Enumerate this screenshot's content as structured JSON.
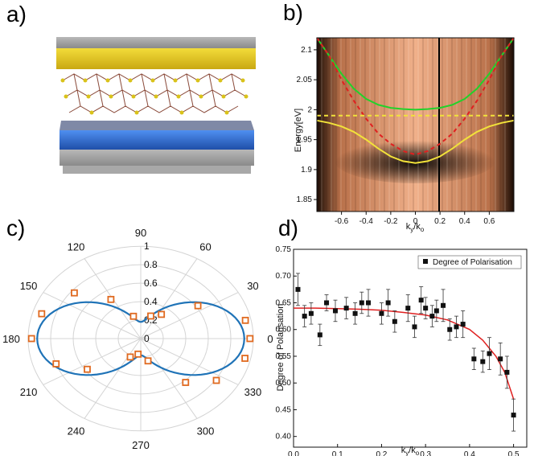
{
  "panels": {
    "a": "a)",
    "b": "b)",
    "c": "c)",
    "d": "d)"
  },
  "colors": {
    "gold": "#e0c419",
    "grey": "#9a9a9a",
    "blue": "#2f6fd0",
    "mos2_yellow": "#d9c21a",
    "mos2_brown": "#8a4a3a",
    "green_curve": "#22d22a",
    "red_dash": "#e02020",
    "yellow_curve": "#f2e23a",
    "polar_curve": "#1f73b7",
    "polar_marker": "#e06a20",
    "fit_red": "#e02020"
  },
  "chart_data": [
    {
      "panel": "b",
      "type": "line",
      "xlabel": "k_y/k_o",
      "ylabel": "Energy[eV]",
      "xlim": [
        -0.8,
        0.8
      ],
      "ylim": [
        1.83,
        2.12
      ],
      "xticks": [
        "-0.6",
        "-0.4",
        "-0.2",
        "0",
        "0.2",
        "0.4",
        "0.6"
      ],
      "xtick_values": [
        -0.6,
        -0.4,
        -0.2,
        0,
        0.2,
        0.4,
        0.6
      ],
      "yticks": [
        "1.85",
        "1.9",
        "1.95",
        "2",
        "2.05",
        "2.1"
      ],
      "ytick_values": [
        1.85,
        1.9,
        1.95,
        2.0,
        2.05,
        2.1
      ],
      "background": "angle-resolved reflectivity colormap (copper)",
      "series": [
        {
          "style": "green-solid",
          "x": [
            -0.8,
            -0.7,
            -0.6,
            -0.5,
            -0.4,
            -0.3,
            -0.2,
            -0.1,
            0,
            0.1,
            0.2,
            0.3,
            0.4,
            0.5,
            0.6,
            0.7,
            0.8
          ],
          "y": [
            2.13,
            2.09,
            2.06,
            2.035,
            2.018,
            2.008,
            2.003,
            2.001,
            2.0,
            2.001,
            2.003,
            2.008,
            2.018,
            2.035,
            2.06,
            2.09,
            2.13
          ]
        },
        {
          "style": "red-dashed",
          "x": [
            -0.8,
            -0.7,
            -0.6,
            -0.5,
            -0.4,
            -0.3,
            -0.2,
            -0.1,
            0,
            0.1,
            0.2,
            0.3,
            0.4,
            0.5,
            0.6,
            0.7,
            0.8
          ],
          "y": [
            2.14,
            2.09,
            2.05,
            2.015,
            1.985,
            1.96,
            1.943,
            1.931,
            1.925,
            1.931,
            1.943,
            1.96,
            1.985,
            2.015,
            2.05,
            2.09,
            2.14
          ]
        },
        {
          "style": "yellow-dashed",
          "x": [
            -0.8,
            0.8
          ],
          "y": [
            1.99,
            1.99
          ]
        },
        {
          "style": "yellow-solid",
          "x": [
            -0.8,
            -0.7,
            -0.6,
            -0.5,
            -0.4,
            -0.3,
            -0.2,
            -0.1,
            0,
            0.1,
            0.2,
            0.3,
            0.4,
            0.5,
            0.6,
            0.7,
            0.8
          ],
          "y": [
            1.982,
            1.978,
            1.972,
            1.963,
            1.95,
            1.935,
            1.922,
            1.914,
            1.911,
            1.914,
            1.922,
            1.935,
            1.95,
            1.963,
            1.972,
            1.978,
            1.982
          ]
        }
      ],
      "grid": false
    },
    {
      "panel": "c",
      "type": "scatter",
      "coords": "polar",
      "angle_labels": [
        "0",
        "30",
        "60",
        "90",
        "120",
        "150",
        "180",
        "210",
        "240",
        "270",
        "300",
        "330"
      ],
      "angle_values": [
        0,
        30,
        60,
        90,
        120,
        150,
        180,
        210,
        240,
        270,
        300,
        330
      ],
      "r_labels": [
        "0",
        "0.2",
        "0.4",
        "0.6",
        "0.8",
        "1"
      ],
      "r_values": [
        0,
        0.2,
        0.4,
        0.6,
        0.8,
        1.0
      ],
      "points": [
        {
          "angle": 0,
          "r": 0.97
        },
        {
          "angle": 12,
          "r": 0.95
        },
        {
          "angle": 35,
          "r": 0.62
        },
        {
          "angle": 55,
          "r": 0.32
        },
        {
          "angle": 70,
          "r": 0.26
        },
        {
          "angle": 105,
          "r": 0.25
        },
        {
          "angle": 122,
          "r": 0.5
        },
        {
          "angle": 140,
          "r": 0.77
        },
        {
          "angle": 163,
          "r": 0.92
        },
        {
          "angle": 180,
          "r": 0.97
        },
        {
          "angle": 200,
          "r": 0.8
        },
        {
          "angle": 215,
          "r": 0.58
        },
        {
          "angle": 245,
          "r": 0.22
        },
        {
          "angle": 262,
          "r": 0.17
        },
        {
          "angle": 285,
          "r": 0.25
        },
        {
          "angle": 310,
          "r": 0.62
        },
        {
          "angle": 326,
          "r": 0.81
        },
        {
          "angle": 347,
          "r": 0.95
        }
      ],
      "fit": "r = 0.18 + 0.74*cos^2(theta)",
      "grid": true
    },
    {
      "panel": "d",
      "type": "scatter",
      "xlabel": "k_y/k_o",
      "ylabel": "Degree of Polarisation",
      "legend": "Degree of Polarisation",
      "legend_position": "top-right",
      "xlim": [
        0,
        0.53
      ],
      "ylim": [
        0.38,
        0.75
      ],
      "xticks": [
        "0.0",
        "0.1",
        "0.2",
        "0.3",
        "0.4",
        "0.5"
      ],
      "xtick_values": [
        0,
        0.1,
        0.2,
        0.3,
        0.4,
        0.5
      ],
      "yticks": [
        "0.40",
        "0.45",
        "0.50",
        "0.55",
        "0.60",
        "0.65",
        "0.70",
        "0.75"
      ],
      "ytick_values": [
        0.4,
        0.45,
        0.5,
        0.55,
        0.6,
        0.65,
        0.7,
        0.75
      ],
      "x": [
        0.01,
        0.025,
        0.04,
        0.06,
        0.075,
        0.095,
        0.12,
        0.14,
        0.155,
        0.17,
        0.2,
        0.215,
        0.23,
        0.26,
        0.275,
        0.29,
        0.3,
        0.315,
        0.325,
        0.34,
        0.355,
        0.37,
        0.385,
        0.41,
        0.43,
        0.445,
        0.47,
        0.485,
        0.5
      ],
      "y": [
        0.675,
        0.625,
        0.63,
        0.59,
        0.65,
        0.635,
        0.64,
        0.63,
        0.65,
        0.65,
        0.63,
        0.65,
        0.615,
        0.64,
        0.605,
        0.655,
        0.64,
        0.625,
        0.635,
        0.645,
        0.6,
        0.605,
        0.61,
        0.545,
        0.54,
        0.555,
        0.545,
        0.52,
        0.44
      ],
      "err": [
        0.03,
        0.02,
        0.02,
        0.02,
        0.015,
        0.02,
        0.02,
        0.02,
        0.02,
        0.025,
        0.02,
        0.025,
        0.02,
        0.025,
        0.02,
        0.025,
        0.02,
        0.02,
        0.02,
        0.03,
        0.02,
        0.02,
        0.025,
        0.02,
        0.02,
        0.03,
        0.03,
        0.03,
        0.03
      ],
      "fit": {
        "x": [
          0,
          0.05,
          0.1,
          0.15,
          0.2,
          0.25,
          0.3,
          0.35,
          0.4,
          0.43,
          0.46,
          0.48,
          0.5
        ],
        "y": [
          0.64,
          0.64,
          0.639,
          0.638,
          0.636,
          0.632,
          0.627,
          0.618,
          0.6,
          0.58,
          0.55,
          0.52,
          0.47
        ]
      },
      "grid": false
    }
  ]
}
